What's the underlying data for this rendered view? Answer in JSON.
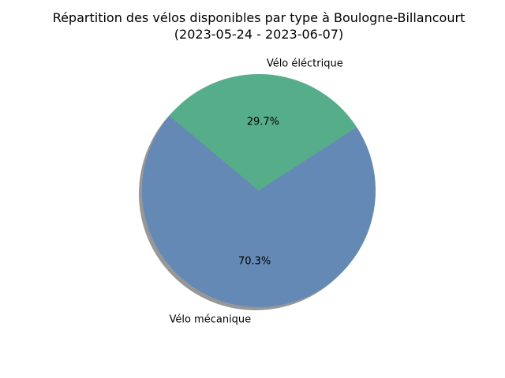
{
  "chart_data": {
    "type": "pie",
    "title": "Répartition des vélos disponibles par type à Boulogne-Billancourt",
    "subtitle": "(2023-05-24 - 2023-06-07)",
    "slices": [
      {
        "label": "Vélo mécanique",
        "value": 70.3,
        "pct_label": "70.3%",
        "color": "#6489b4"
      },
      {
        "label": "Vélo éléctrique",
        "value": 29.7,
        "pct_label": "29.7%",
        "color": "#56ad8a"
      }
    ],
    "start_angle_deg": 140,
    "shadow": true,
    "legend": "none"
  }
}
